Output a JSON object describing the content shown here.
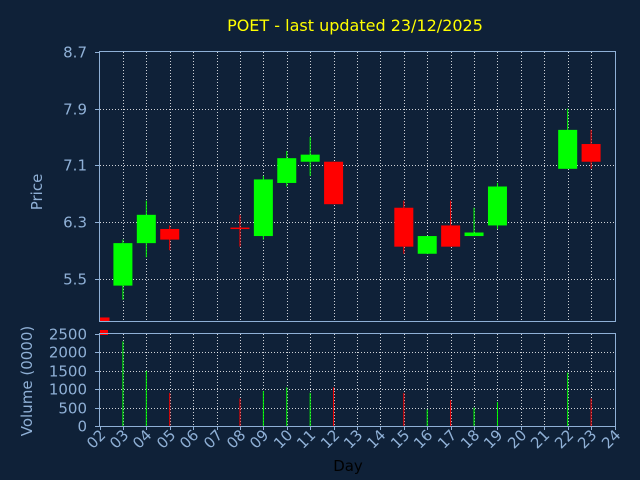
{
  "chart_data": {
    "type": "candlestick",
    "title": "POET - last updated 23/12/2025",
    "xlabel": "Day",
    "price_panel": {
      "ylabel": "Price",
      "ylim": [
        4.9,
        8.7
      ],
      "yticks": [
        "8.7",
        "7.9",
        "7.1",
        "6.3",
        "5.5"
      ],
      "grid": true
    },
    "volume_panel": {
      "ylabel": "Volume (0000)",
      "ylim": [
        0,
        2500
      ],
      "yticks": [
        "2500",
        "2000",
        "1500",
        "1000",
        "500",
        "0"
      ],
      "grid": true
    },
    "x_ticks": [
      "02",
      "03",
      "04",
      "05",
      "06",
      "07",
      "08",
      "09",
      "10",
      "11",
      "12",
      "13",
      "14",
      "15",
      "16",
      "17",
      "18",
      "19",
      "20",
      "21",
      "22",
      "23",
      "24"
    ],
    "candles": [
      {
        "day": 2,
        "open": 4.95,
        "close": 4.9,
        "high": 4.95,
        "low": 4.9,
        "volume": 2600
      },
      {
        "day": 3,
        "open": 5.4,
        "close": 6.0,
        "high": 6.05,
        "low": 5.2,
        "volume": 2300
      },
      {
        "day": 4,
        "open": 6.0,
        "close": 6.4,
        "high": 6.6,
        "low": 5.8,
        "volume": 1500
      },
      {
        "day": 5,
        "open": 6.2,
        "close": 6.05,
        "high": 6.25,
        "low": 5.9,
        "volume": 900
      },
      {
        "day": 8,
        "open": 6.22,
        "close": 6.2,
        "high": 6.4,
        "low": 5.95,
        "volume": 750
      },
      {
        "day": 9,
        "open": 6.1,
        "close": 6.9,
        "high": 6.95,
        "low": 6.05,
        "volume": 950
      },
      {
        "day": 10,
        "open": 6.85,
        "close": 7.2,
        "high": 7.3,
        "low": 6.8,
        "volume": 1050
      },
      {
        "day": 11,
        "open": 7.15,
        "close": 7.25,
        "high": 7.5,
        "low": 6.95,
        "volume": 900
      },
      {
        "day": 12,
        "open": 7.15,
        "close": 6.55,
        "high": 7.15,
        "low": 6.55,
        "volume": 1050
      },
      {
        "day": 15,
        "open": 6.5,
        "close": 5.95,
        "high": 6.6,
        "low": 5.85,
        "volume": 900
      },
      {
        "day": 16,
        "open": 5.85,
        "close": 6.1,
        "high": 6.1,
        "low": 5.85,
        "volume": 450
      },
      {
        "day": 17,
        "open": 6.25,
        "close": 5.95,
        "high": 6.6,
        "low": 5.95,
        "volume": 700
      },
      {
        "day": 18,
        "open": 6.1,
        "close": 6.15,
        "high": 6.5,
        "low": 6.1,
        "volume": 500
      },
      {
        "day": 19,
        "open": 6.25,
        "close": 6.8,
        "high": 6.85,
        "low": 6.2,
        "volume": 650
      },
      {
        "day": 22,
        "open": 7.05,
        "close": 7.6,
        "high": 7.9,
        "low": 7.05,
        "volume": 1450
      },
      {
        "day": 23,
        "open": 7.4,
        "close": 7.15,
        "high": 7.6,
        "low": 7.05,
        "volume": 750
      }
    ],
    "colors": {
      "up": "#00ff00",
      "down": "#ff0000",
      "background": "#0f2138",
      "plot_border": "#8fb0d6",
      "grid": "#ffffff",
      "tick_text": "#8fb0d6",
      "title": "#ffff00"
    }
  }
}
